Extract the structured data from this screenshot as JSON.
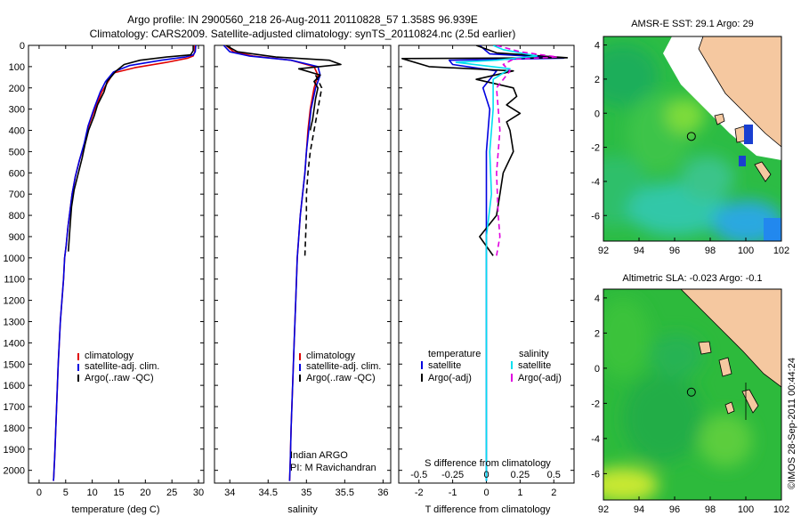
{
  "header": {
    "title_line1": "Argo profile: IN 2900560_218 26-Aug-2011 20110828_57 1.358S 96.939E",
    "title_line2": "Climatology: CARS2009. Satellite-adjusted climatology: synTS_20110824.nc (2.5d earlier)"
  },
  "credit": "©IMOS 28-Sep-2011 00:44:24",
  "colors": {
    "climatology": "#e00000",
    "satellite": "#0000e0",
    "argo": "#000000",
    "sal_satellite": "#00e0f0",
    "sal_argo": "#e000e0",
    "land": "#f5c8a0"
  },
  "chart_data": [
    {
      "id": "temperature",
      "type": "line",
      "xlabel": "temperature (deg C)",
      "ylabel": "",
      "xlim": [
        -2,
        31
      ],
      "ylim": [
        2060,
        0
      ],
      "xticks": [
        0,
        5,
        10,
        15,
        20,
        25,
        30
      ],
      "xtick_labels": [
        "0",
        "5",
        "10",
        "15",
        "20",
        "25",
        "30"
      ],
      "yticks": [
        0,
        100,
        200,
        300,
        400,
        500,
        600,
        700,
        800,
        900,
        1000,
        1100,
        1200,
        1300,
        1400,
        1500,
        1600,
        1700,
        1800,
        1900,
        2000
      ],
      "ytick_labels": [
        "0",
        "100",
        "200",
        "300",
        "400",
        "500",
        "600",
        "700",
        "800",
        "900",
        "1000",
        "1100",
        "1200",
        "1300",
        "1400",
        "1500",
        "1600",
        "1700",
        "1800",
        "1900",
        "2000"
      ],
      "legend": [
        "climatology",
        "satellite-adj. clim.",
        "Argo(..raw -QC)"
      ],
      "series": [
        {
          "name": "climatology",
          "color": "#e00000",
          "dash": "",
          "x": [
            29.3,
            29.3,
            29.0,
            28.0,
            24,
            18,
            14.0,
            13.0,
            11.8,
            10.5,
            9.3,
            8.6,
            7.6,
            6.8,
            6.2,
            5.8,
            5.4,
            5.1,
            4.8,
            4.6,
            4.3,
            4.0,
            3.8,
            3.6,
            3.45,
            3.3,
            3.15,
            3.0,
            2.9,
            2.8,
            2.75,
            2.7
          ],
          "y": [
            0,
            30,
            50,
            60,
            80,
            105,
            130,
            170,
            220,
            300,
            380,
            460,
            540,
            620,
            700,
            780,
            860,
            940,
            1000,
            1100,
            1200,
            1300,
            1400,
            1500,
            1600,
            1700,
            1800,
            1900,
            1950,
            2000,
            2030,
            2050
          ]
        },
        {
          "name": "satellite-adj. clim.",
          "color": "#0000e0",
          "dash": "",
          "x": [
            29.5,
            29.4,
            29.0,
            27.5,
            23,
            17,
            14.0,
            12.5,
            11.5,
            10.3,
            9.2,
            8.5,
            7.6,
            6.8,
            6.2,
            5.8,
            5.4,
            5.1,
            4.8,
            4.6,
            4.3,
            4.0,
            3.8,
            3.6,
            3.45,
            3.3,
            3.15,
            3.0,
            2.9,
            2.8,
            2.75,
            2.7
          ],
          "y": [
            0,
            30,
            45,
            55,
            70,
            95,
            125,
            170,
            220,
            300,
            380,
            460,
            540,
            620,
            700,
            780,
            860,
            940,
            1000,
            1100,
            1200,
            1300,
            1400,
            1500,
            1600,
            1700,
            1800,
            1900,
            1950,
            2000,
            2030,
            2050
          ]
        },
        {
          "name": "Argo(..raw -QC)",
          "color": "#000000",
          "dash": "",
          "x": [
            29.0,
            29.0,
            28.5,
            24,
            19,
            16,
            14.5,
            12.8,
            12.2,
            11.0,
            10.4,
            9.3,
            8.6,
            8.1,
            7.4,
            6.6,
            6.1,
            5.8,
            5.5
          ],
          "y": [
            0,
            25,
            45,
            55,
            70,
            90,
            120,
            170,
            220,
            280,
            330,
            400,
            470,
            530,
            600,
            680,
            760,
            860,
            970
          ]
        }
      ]
    },
    {
      "id": "salinity",
      "type": "line",
      "xlabel": "salinity",
      "ylabel": "",
      "xlim": [
        33.8,
        36.1
      ],
      "ylim": [
        2060,
        0
      ],
      "xticks": [
        34,
        34.5,
        35,
        35.5,
        36
      ],
      "xtick_labels": [
        "34",
        "34.5",
        "35",
        "35.5",
        "36"
      ],
      "legend": [
        "climatology",
        "satellite-adj. clim.",
        "Argo(..raw -QC)"
      ],
      "annotations": [
        "Indian ARGO",
        "PI: M Ravichandran"
      ],
      "series": [
        {
          "name": "climatology",
          "color": "#e00000",
          "dash": "",
          "x": [
            33.95,
            34.05,
            34.3,
            34.8,
            35.1,
            35.15,
            35.1,
            35.05,
            35.02,
            35.0,
            34.98,
            34.95,
            34.92,
            34.9,
            34.88,
            34.86,
            34.84,
            34.82,
            34.8,
            34.79,
            34.78
          ],
          "y": [
            0,
            30,
            50,
            70,
            100,
            140,
            200,
            300,
            400,
            500,
            600,
            700,
            800,
            900,
            1000,
            1200,
            1400,
            1600,
            1800,
            1950,
            2050
          ]
        },
        {
          "name": "satellite-adj. clim.",
          "color": "#0000e0",
          "dash": "",
          "x": [
            33.92,
            34.0,
            34.25,
            34.8,
            35.15,
            35.18,
            35.12,
            35.06,
            35.03,
            35.0,
            34.98,
            34.95,
            34.92,
            34.9,
            34.88,
            34.86,
            34.84,
            34.82,
            34.8,
            34.79,
            34.78
          ],
          "y": [
            0,
            30,
            50,
            70,
            100,
            140,
            200,
            300,
            400,
            500,
            600,
            700,
            800,
            900,
            1000,
            1200,
            1400,
            1600,
            1800,
            1950,
            2050
          ]
        },
        {
          "name": "Argo(..raw -QC)",
          "color": "#000000",
          "dash": "",
          "x": [
            33.95,
            34.1,
            34.6,
            35.3,
            35.45,
            34.9,
            35.18,
            35.1,
            35.15,
            35.12,
            35.1,
            35.08,
            35.06,
            35.05
          ],
          "y": [
            0,
            30,
            55,
            70,
            90,
            110,
            140,
            170,
            200,
            250,
            300,
            350,
            380,
            400
          ]
        },
        {
          "name": "Argo(..raw -QC)",
          "color": "#000000",
          "dash": "6 4",
          "x": [
            35.12,
            35.2,
            35.15,
            35.1,
            35.05,
            35.02,
            35.0,
            35.0,
            34.98
          ],
          "y": [
            140,
            200,
            300,
            400,
            500,
            600,
            700,
            800,
            990
          ]
        }
      ]
    },
    {
      "id": "difference",
      "type": "line",
      "xlabel": "T difference from climatology",
      "x2label": "S difference from climatology",
      "xlim": [
        -2.6,
        2.6
      ],
      "ylim": [
        2060,
        0
      ],
      "xticks": [
        -2,
        -1,
        0,
        1,
        2
      ],
      "xtick_labels": [
        "-2",
        "-1",
        "0",
        "1",
        "2"
      ],
      "x2ticks": [
        -2,
        -1,
        0,
        1,
        2
      ],
      "x2tick_labels": [
        "-0.5",
        "-0.25",
        "0",
        "0.25",
        "0.5"
      ],
      "legend_temperature": [
        "temperature",
        "satellite",
        "Argo(-adj)"
      ],
      "legend_salinity": [
        "salinity",
        "satellite",
        "Argo(-adj)"
      ],
      "series": [
        {
          "name": "satellite",
          "color": "#0000e0",
          "dash": "",
          "x": [
            -0.2,
            0.1,
            2.3,
            -1.1,
            -1.0,
            0.3,
            -0.1,
            0.1,
            0,
            0
          ],
          "y": [
            0,
            40,
            60,
            70,
            90,
            120,
            200,
            300,
            500,
            2050
          ]
        },
        {
          "name": "Argo(-adj)",
          "color": "#000000",
          "dash": "",
          "x": [
            -0.3,
            0.3,
            2.4,
            -2.5,
            -1.7,
            0.8,
            -0.3,
            0.8,
            0.9,
            0.6,
            1.0,
            0.6,
            0.7,
            0.8,
            0.5,
            0.4,
            0.3,
            -0.2,
            0.2
          ],
          "y": [
            0,
            35,
            58,
            62,
            100,
            120,
            160,
            200,
            240,
            280,
            320,
            360,
            400,
            500,
            600,
            700,
            800,
            900,
            990
          ]
        },
        {
          "name": "satellite",
          "color": "#00e0f0",
          "dash": "",
          "x": [
            0.2,
            0.5,
            1.5,
            0.3,
            -0.9,
            0.7,
            0.2,
            0.2,
            0.1,
            0.15,
            0,
            0
          ],
          "y": [
            0,
            20,
            50,
            70,
            80,
            110,
            160,
            300,
            500,
            700,
            900,
            2050
          ]
        },
        {
          "name": "Argo(-adj)",
          "color": "#e000e0",
          "dash": "6 4",
          "x": [
            0.3,
            1.0,
            2.1,
            0.8,
            0.5,
            0.7,
            0.3,
            0.4,
            0.3,
            0.35,
            0.4,
            0.3
          ],
          "y": [
            0,
            30,
            55,
            65,
            90,
            120,
            200,
            400,
            600,
            800,
            900,
            990
          ]
        }
      ]
    },
    {
      "id": "sst_map",
      "type": "heatmap",
      "title": "AMSR-E SST: 29.1 Argo: 29",
      "xlim": [
        92,
        102
      ],
      "ylim": [
        -7.5,
        4.5
      ],
      "xticks": [
        92,
        94,
        96,
        98,
        100,
        102
      ],
      "yticks": [
        4,
        2,
        0,
        -2,
        -4,
        -6
      ],
      "marker": {
        "lon": 96.94,
        "lat": -1.36
      }
    },
    {
      "id": "sla_map",
      "type": "heatmap",
      "title": "Altimetric SLA: -0.023 Argo: -0.1",
      "xlim": [
        92,
        102
      ],
      "ylim": [
        -7.5,
        4.5
      ],
      "xticks": [
        92,
        94,
        96,
        98,
        100,
        102
      ],
      "yticks": [
        4,
        2,
        0,
        -2,
        -4,
        -6
      ],
      "marker": {
        "lon": 96.94,
        "lat": -1.36
      }
    }
  ]
}
